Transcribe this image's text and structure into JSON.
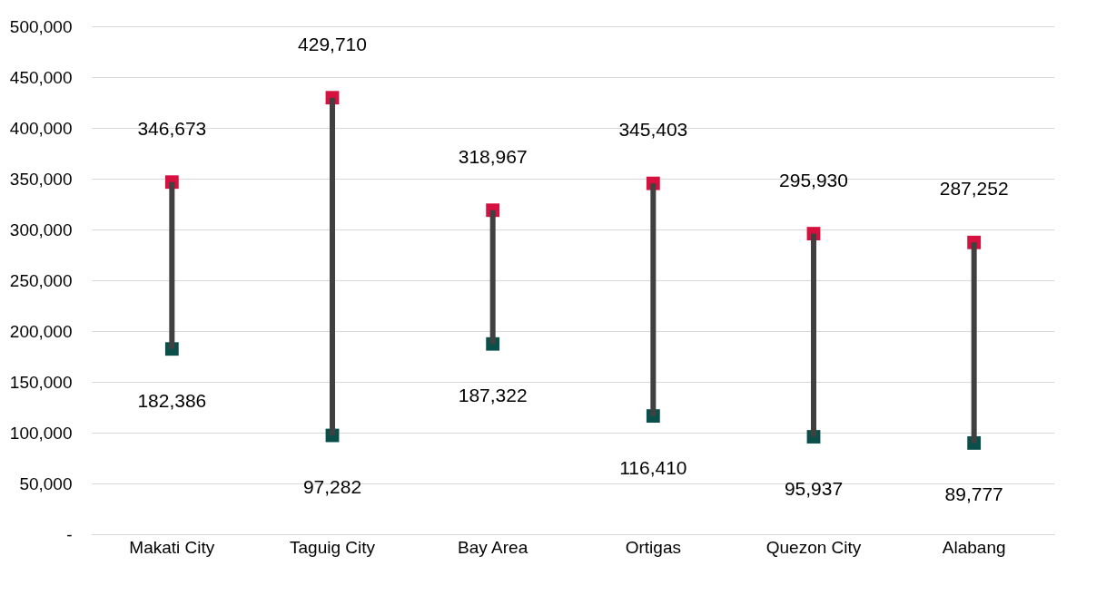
{
  "chart_data": {
    "type": "bar",
    "categories": [
      "Makati City",
      "Taguig City",
      "Bay Area",
      "Ortigas",
      "Quezon City",
      "Alabang"
    ],
    "series": [
      {
        "color": "#404040",
        "base": [
          182386,
          97282,
          187322,
          116410,
          95937,
          89777
        ],
        "values": [
          164287,
          332428,
          131645,
          228993,
          199993,
          197475
        ]
      },
      {
        "type": "scatter",
        "color": "#d6103f",
        "values": [
          346673,
          429710,
          318967,
          345403,
          295930,
          287252
        ],
        "value_labels": [
          "346,673",
          "429,710",
          "318,967",
          "345,403",
          "295,930",
          "287,252"
        ]
      },
      {
        "type": "scatter",
        "color": "#0a4f4a",
        "values": [
          182386,
          97282,
          187322,
          116410,
          95937,
          89777
        ],
        "value_labels": [
          "182,386",
          "97,282",
          "187,322",
          "116,410",
          "95,937",
          "89,777"
        ]
      }
    ],
    "ylim": [
      0,
      500000
    ],
    "yticks": [
      {
        "value": 0,
        "label": "-"
      },
      {
        "value": 50000,
        "label": "50,000"
      },
      {
        "value": 100000,
        "label": "100,000"
      },
      {
        "value": 150000,
        "label": "150,000"
      },
      {
        "value": 200000,
        "label": "200,000"
      },
      {
        "value": 250000,
        "label": "250,000"
      },
      {
        "value": 300000,
        "label": "300,000"
      },
      {
        "value": 350000,
        "label": "350,000"
      },
      {
        "value": 400000,
        "label": "400,000"
      },
      {
        "value": 450000,
        "label": "450,000"
      },
      {
        "value": 500000,
        "label": "500,000"
      }
    ],
    "grid": "y",
    "marker": "square"
  }
}
